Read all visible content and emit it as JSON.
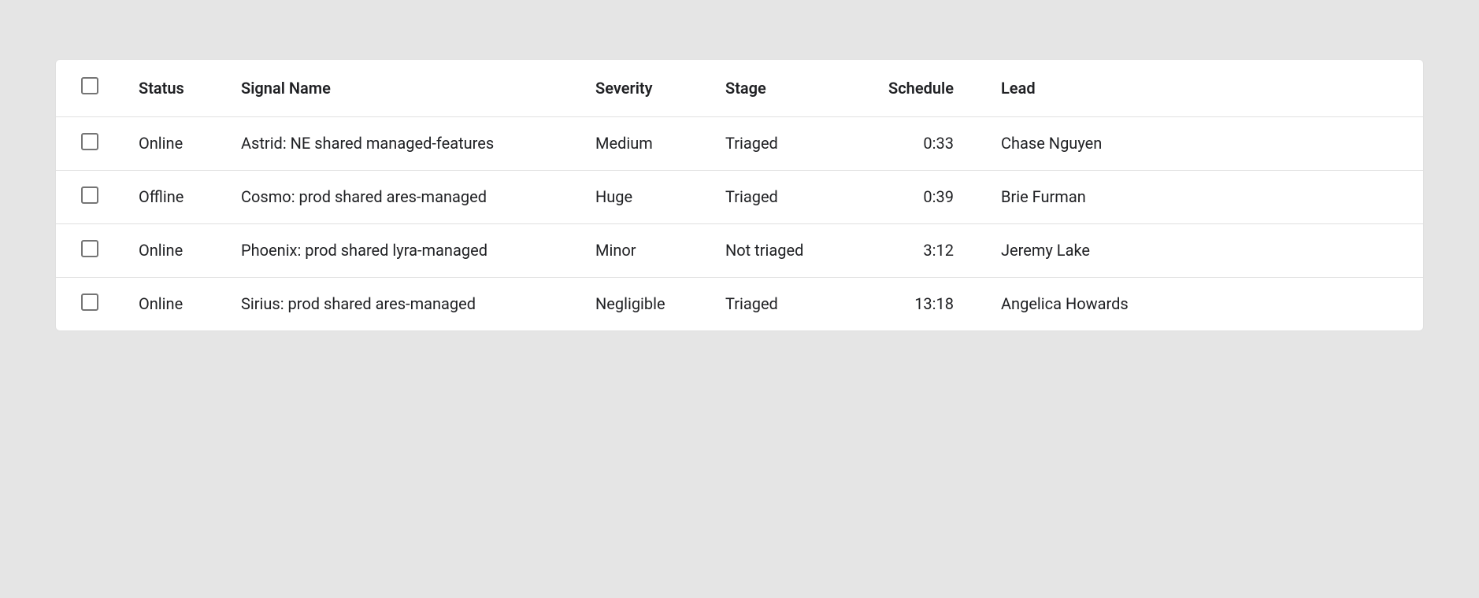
{
  "columns": {
    "status": "Status",
    "name": "Signal Name",
    "severity": "Severity",
    "stage": "Stage",
    "schedule": "Schedule",
    "lead": "Lead"
  },
  "rows": [
    {
      "status": "Online",
      "name": "Astrid: NE shared managed-features",
      "severity": "Medium",
      "stage": "Triaged",
      "schedule": "0:33",
      "lead": "Chase Nguyen"
    },
    {
      "status": "Offline",
      "name": "Cosmo: prod shared ares-managed",
      "severity": "Huge",
      "stage": "Triaged",
      "schedule": "0:39",
      "lead": "Brie Furman"
    },
    {
      "status": "Online",
      "name": "Phoenix: prod shared lyra-managed",
      "severity": "Minor",
      "stage": "Not triaged",
      "schedule": "3:12",
      "lead": "Jeremy Lake"
    },
    {
      "status": "Online",
      "name": "Sirius: prod shared ares-managed",
      "severity": "Negligible",
      "stage": "Triaged",
      "schedule": "13:18",
      "lead": "Angelica Howards"
    }
  ]
}
